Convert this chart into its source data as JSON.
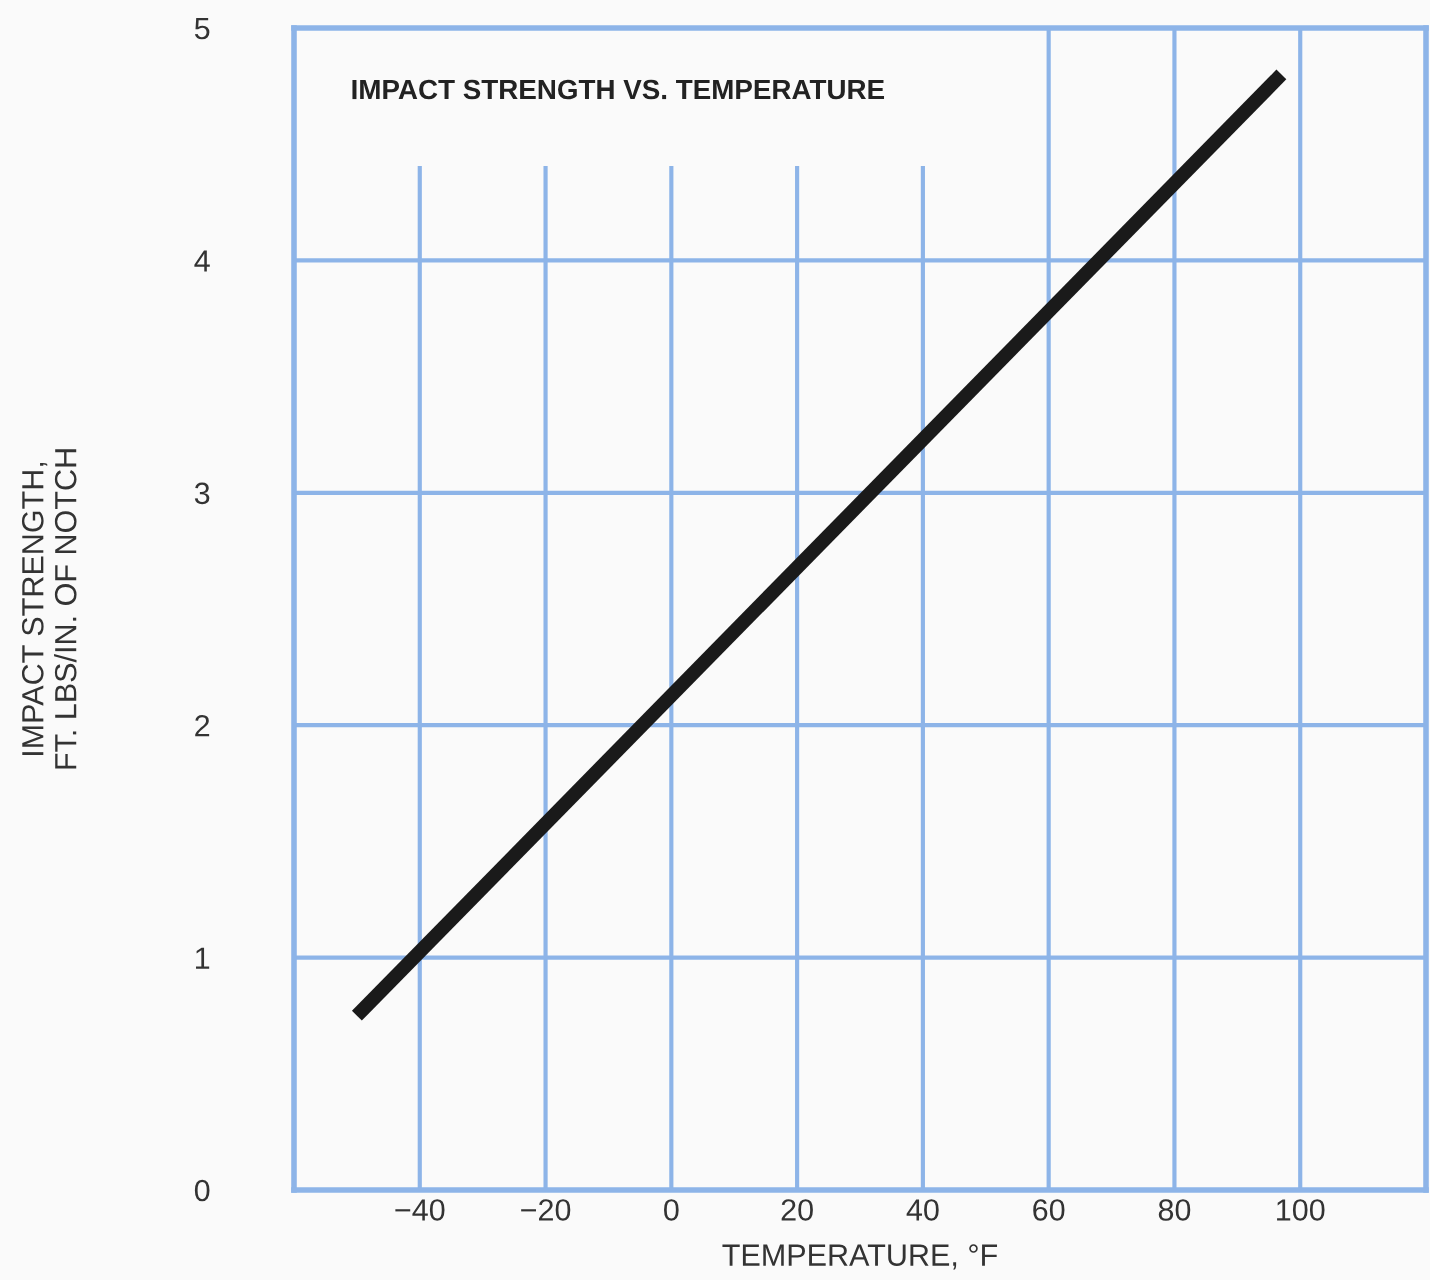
{
  "chart_data": {
    "type": "line",
    "xlabel": "TEMPERATURE, °F",
    "ylabel": "IMPACT STRENGTH,\nFT. LBS/IN. OF NOTCH",
    "annotations": [
      "IMPACT STRENGTH VS. TEMPERATURE"
    ],
    "x": [
      -50,
      97
    ],
    "series": [
      {
        "color": "#1a1a1a",
        "values": [
          0.75,
          4.8
        ]
      }
    ],
    "xlim": [
      -60,
      120
    ],
    "xticks": [
      -40,
      -20,
      0,
      20,
      40,
      60,
      80,
      100
    ],
    "ylim": [
      0,
      5
    ],
    "yticks": [
      0,
      1,
      2,
      3,
      4,
      5
    ],
    "grid": true,
    "marker": "none",
    "line_style": "solid"
  }
}
